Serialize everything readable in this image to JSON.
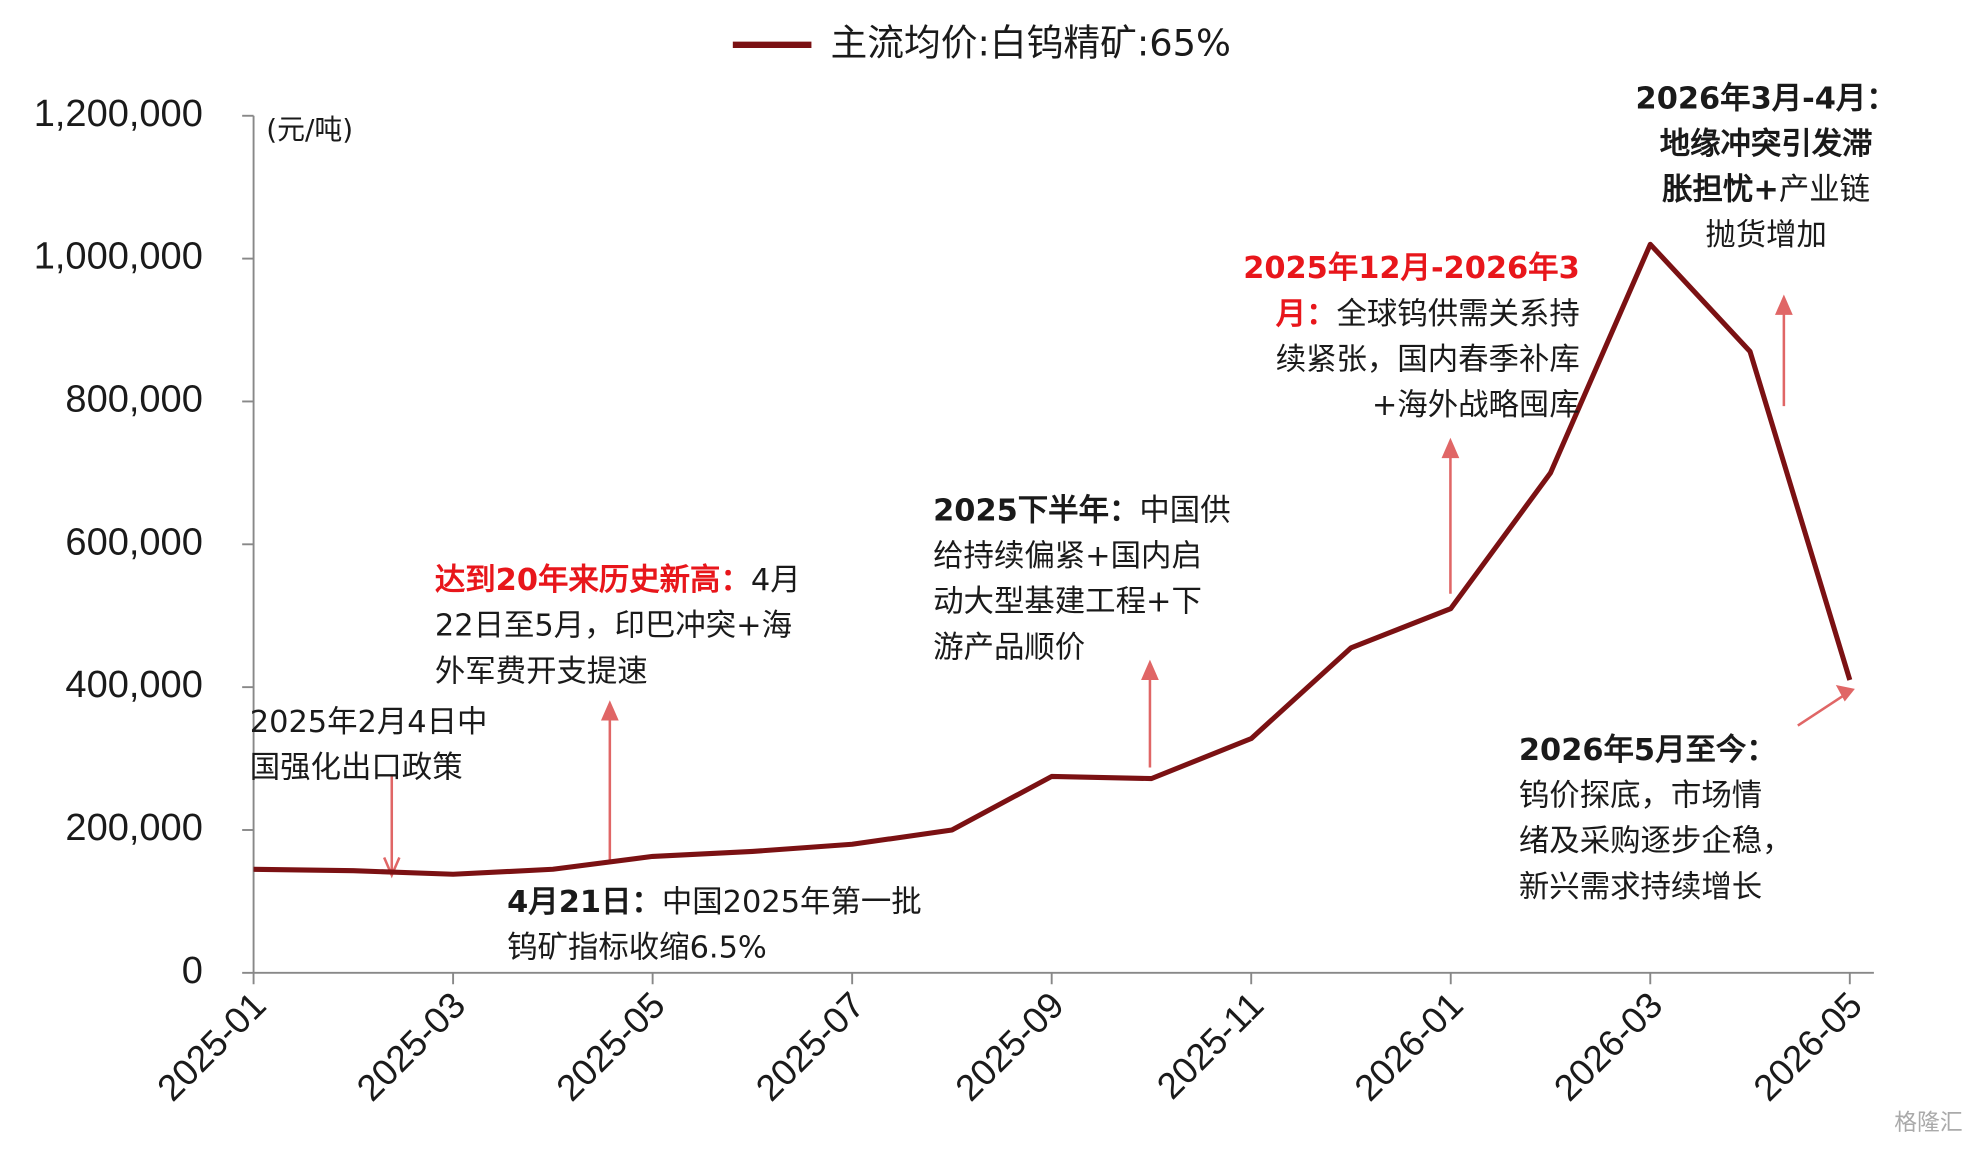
{
  "chart_data": {
    "type": "line",
    "series": [
      {
        "name": "主流均价:白钨精矿:65%",
        "color": "#7b1113",
        "values": [
          145000,
          143000,
          138000,
          145000,
          163000,
          170000,
          180000,
          200000,
          275000,
          272000,
          328000,
          455000,
          510000,
          700000,
          1020000,
          870000,
          410000
        ]
      }
    ],
    "x": [
      "2025-01",
      "2025-02",
      "2025-03",
      "2025-04",
      "2025-05",
      "2025-06",
      "2025-07",
      "2025-08",
      "2025-09",
      "2025-10",
      "2025-11",
      "2025-12",
      "2026-01",
      "2026-02",
      "2026-03",
      "2026-04",
      "2026-05"
    ],
    "xlim": [
      "2025-01",
      "2026-05"
    ],
    "xticks": [
      "2025-01",
      "2025-03",
      "2025-05",
      "2025-07",
      "2025-09",
      "2025-11",
      "2026-01",
      "2026-03",
      "2026-05"
    ],
    "ylim": [
      0,
      1200000
    ],
    "yticks": [
      0,
      {
        "value": 200000,
        "label": "200,000"
      },
      {
        "value": 400000,
        "label": "400,000"
      },
      {
        "value": 600000,
        "label": "600,000"
      },
      {
        "value": 800000,
        "label": "800,000"
      },
      {
        "value": 1000000,
        "label": "1,000,000"
      },
      {
        "value": 1200000,
        "label": "1,200,000"
      }
    ],
    "y_unit": "(元/吨)",
    "legend": "top",
    "watermark": "格隆汇",
    "annotations": [
      {
        "lines": [
          [
            {
              "text": "2025年2月4日中"
            }
          ],
          [
            {
              "text": "国强化出口政策"
            }
          ]
        ]
      },
      {
        "lines": [
          [
            {
              "text": "达到20年来历史新高：",
              "bold": true,
              "color": "#e8161b"
            },
            {
              "text": "4月"
            }
          ],
          [
            {
              "text": "22日至5月，印巴冲突+海"
            }
          ],
          [
            {
              "text": "外军费开支提速"
            }
          ]
        ]
      },
      {
        "lines": [
          [
            {
              "text": "4月21日：",
              "bold": true
            },
            {
              "text": "中国2025年第一批"
            }
          ],
          [
            {
              "text": "钨矿指标收缩6.5%"
            }
          ]
        ]
      },
      {
        "lines": [
          [
            {
              "text": "2025下半年：",
              "bold": true
            },
            {
              "text": "中国供"
            }
          ],
          [
            {
              "text": "给持续偏紧+国内启"
            }
          ],
          [
            {
              "text": "动大型基建工程+下"
            }
          ],
          [
            {
              "text": "游产品顺价"
            }
          ]
        ]
      },
      {
        "lines": [
          [
            {
              "text": "2025年12月-2026年3",
              "bold": true,
              "color": "#e8161b"
            }
          ],
          [
            {
              "text": "月：",
              "bold": true,
              "color": "#e8161b"
            },
            {
              "text": "全球钨供需关系持"
            }
          ],
          [
            {
              "text": "续紧张，国内春季补库"
            }
          ],
          [
            {
              "text": "+海外战略囤库"
            }
          ]
        ]
      },
      {
        "lines": [
          [
            {
              "text": "2026年3月-4月：",
              "bold": true
            }
          ],
          [
            {
              "text": "地缘冲突引发滞",
              "bold": true
            }
          ],
          [
            {
              "text": "胀担忧+",
              "bold": true
            },
            {
              "text": "产业链"
            }
          ],
          [
            {
              "text": "抛货增加"
            }
          ]
        ]
      },
      {
        "lines": [
          [
            {
              "text": "2026年5月至今：",
              "bold": true
            }
          ],
          [
            {
              "text": "钨价探底，市场情"
            }
          ],
          [
            {
              "text": "绪及采购逐步企稳，"
            }
          ],
          [
            {
              "text": "新兴需求持续增长"
            }
          ]
        ]
      }
    ]
  }
}
